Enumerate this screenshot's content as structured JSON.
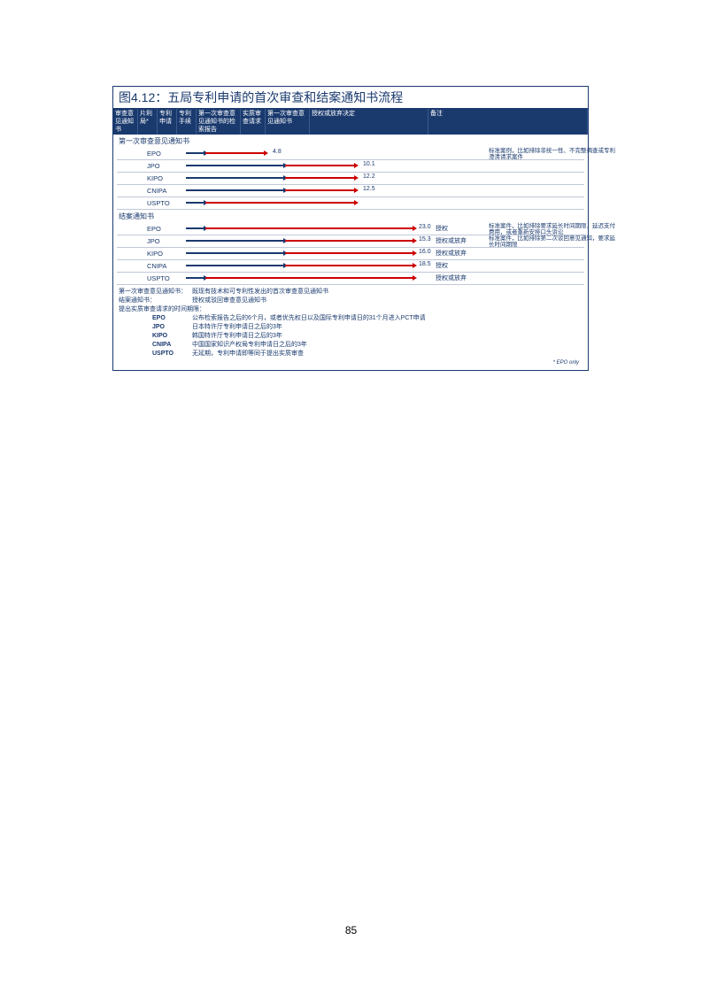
{
  "figure": {
    "title_prefix": "图4.12：",
    "title_text": "五局专利申请的首次审查和结案通知书流程",
    "headers": [
      "审查意见通知书",
      "片利局*",
      "专利申请",
      "专利手续",
      "第一次审查意见通知书的检索报告",
      "实质审查请求",
      "第一次审查意见通知书",
      "授权或放弃决定",
      "备注"
    ],
    "header_widths": [
      28,
      22,
      22,
      22,
      50,
      28,
      50,
      134,
      180
    ],
    "section1_label": "第一次审查意见通知书",
    "section2_label": "结案通知书",
    "arrow_color_blue": "#1a3a6e",
    "arrow_color_red": "#cc0000",
    "rows1": [
      {
        "office": "EPO",
        "segments": [
          {
            "start": 0,
            "end": 22,
            "color": "#1a3a6e"
          },
          {
            "start": 22,
            "end": 90,
            "color": "#cc0000"
          }
        ],
        "value": "4.8",
        "value_x": 98,
        "remark": "标准案例，比如排除非统一性、不完整调查或专利澄清请求案件"
      },
      {
        "office": "JPO",
        "segments": [
          {
            "start": 0,
            "end": 112,
            "color": "#1a3a6e"
          },
          {
            "start": 112,
            "end": 192,
            "color": "#cc0000"
          }
        ],
        "value": "10.1",
        "value_x": 200
      },
      {
        "office": "KIPO",
        "segments": [
          {
            "start": 0,
            "end": 112,
            "color": "#1a3a6e"
          },
          {
            "start": 112,
            "end": 192,
            "color": "#cc0000"
          }
        ],
        "value": "12.2",
        "value_x": 200
      },
      {
        "office": "CNIPA",
        "segments": [
          {
            "start": 0,
            "end": 112,
            "color": "#1a3a6e"
          },
          {
            "start": 112,
            "end": 192,
            "color": "#cc0000"
          }
        ],
        "value": "12.5",
        "value_x": 200
      },
      {
        "office": "USPTO",
        "segments": [
          {
            "start": 0,
            "end": 22,
            "color": "#1a3a6e"
          },
          {
            "start": 22,
            "end": 192,
            "color": "#cc0000"
          }
        ],
        "value": "",
        "value_x": 200
      }
    ],
    "rows2": [
      {
        "office": "EPO",
        "segments": [
          {
            "start": 0,
            "end": 22,
            "color": "#1a3a6e"
          },
          {
            "start": 22,
            "end": 258,
            "color": "#cc0000"
          }
        ],
        "value": "23.0",
        "value_x": 263,
        "decision": "授权",
        "remark": "标准案件，比如排除要求延长时间期限，延迟支付费用，或者重新安排口头诉讼"
      },
      {
        "office": "JPO",
        "segments": [
          {
            "start": 0,
            "end": 112,
            "color": "#1a3a6e"
          },
          {
            "start": 112,
            "end": 258,
            "color": "#cc0000"
          }
        ],
        "value": "15.3",
        "value_x": 263,
        "decision": "授权或放弃",
        "remark": "标准案件，比如排除第二次驳回意见通知，要求延长时间期限"
      },
      {
        "office": "KIPO",
        "segments": [
          {
            "start": 0,
            "end": 112,
            "color": "#1a3a6e"
          },
          {
            "start": 112,
            "end": 258,
            "color": "#cc0000"
          }
        ],
        "value": "16.0",
        "value_x": 263,
        "decision": "授权或放弃"
      },
      {
        "office": "CNIPA",
        "segments": [
          {
            "start": 0,
            "end": 112,
            "color": "#1a3a6e"
          },
          {
            "start": 112,
            "end": 258,
            "color": "#cc0000"
          }
        ],
        "value": "18.5",
        "value_x": 263,
        "decision": "授权"
      },
      {
        "office": "USPTO",
        "segments": [
          {
            "start": 0,
            "end": 22,
            "color": "#1a3a6e"
          },
          {
            "start": 22,
            "end": 258,
            "color": "#cc0000"
          }
        ],
        "value": "",
        "value_x": 263,
        "decision": "授权或放弃"
      }
    ],
    "notes": [
      {
        "key": "第一次审查意见通知书：",
        "val": "既现有技术和可专利性发出的首次审查意见通知书"
      },
      {
        "key": "结案通知书：",
        "val": "授权或驳回审查意见通知书"
      }
    ],
    "sub_header": "提出实质审查请求的时间期限：",
    "sub_notes": [
      {
        "office": "EPO",
        "text": "公布检索报告之后的6个月，或者优先权日以及国际专利申请日的31个月进入PCT申请"
      },
      {
        "office": "JPO",
        "text": "日本特许厅专利申请日之后的3年"
      },
      {
        "office": "KIPO",
        "text": "韩国特许厅专利申请日之后的3年"
      },
      {
        "office": "CNIPA",
        "text": "中国国家知识产权局专利申请日之后的3年"
      },
      {
        "office": "USPTO",
        "text": "无延期，专利申请即等同于提出实质审查"
      }
    ],
    "epo_only_text": "* EPO only"
  },
  "page_number": "85"
}
